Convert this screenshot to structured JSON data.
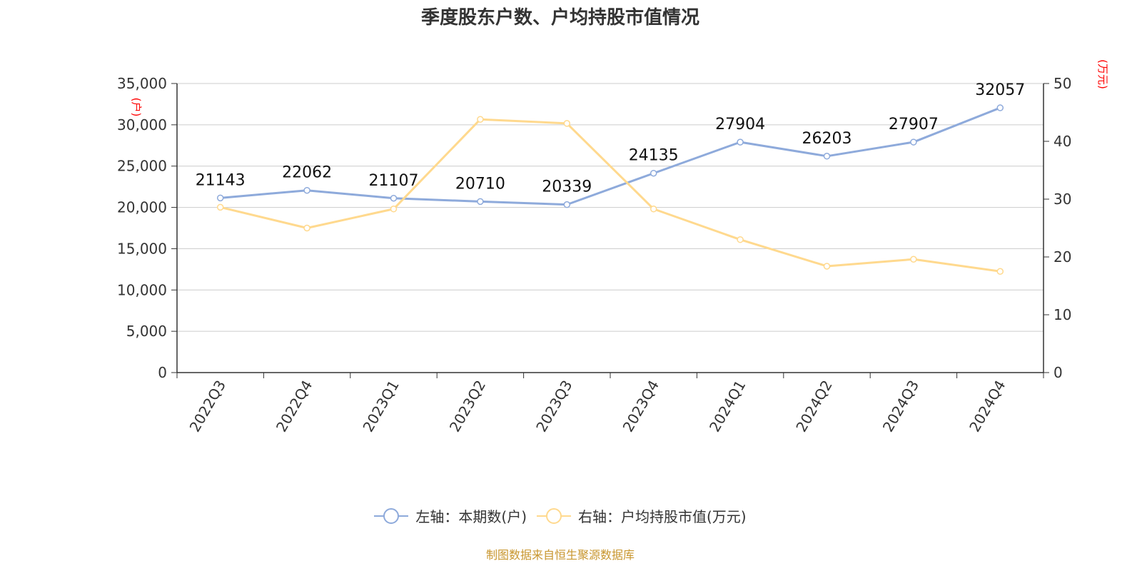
{
  "chart_data": {
    "type": "line",
    "title": "季度股东户数、户均持股市值情况",
    "categories": [
      "2022Q3",
      "2022Q4",
      "2023Q1",
      "2023Q2",
      "2023Q3",
      "2023Q4",
      "2024Q1",
      "2024Q2",
      "2024Q3",
      "2024Q4"
    ],
    "series": [
      {
        "name": "左轴：本期数(户)",
        "axis": "left",
        "color": "#8eaadb",
        "values": [
          21143,
          22062,
          21107,
          20710,
          20339,
          24135,
          27904,
          26203,
          27907,
          32057
        ],
        "labels": [
          "21143",
          "22062",
          "21107",
          "20710",
          "20339",
          "24135",
          "27904",
          "26203",
          "27907",
          "32057"
        ]
      },
      {
        "name": "右轴：户均持股市值(万元)",
        "axis": "right",
        "color": "#ffd98e",
        "values": [
          28.6,
          25.0,
          28.3,
          43.8,
          43.1,
          28.3,
          23.0,
          18.4,
          19.6,
          17.5
        ]
      }
    ],
    "left_axis": {
      "unit": "(户)",
      "ylim": [
        0,
        35000
      ],
      "ticks": [
        0,
        5000,
        10000,
        15000,
        20000,
        25000,
        30000,
        35000
      ],
      "tick_labels": [
        "0",
        "5,000",
        "10,000",
        "15,000",
        "20,000",
        "25,000",
        "30,000",
        "35,000"
      ]
    },
    "right_axis": {
      "unit": "(万元)",
      "ylim": [
        0,
        50
      ],
      "ticks": [
        0,
        10,
        20,
        30,
        40,
        50
      ],
      "tick_labels": [
        "0",
        "10",
        "20",
        "30",
        "40",
        "50"
      ]
    },
    "grid": true,
    "legend_position": "bottom-center",
    "source": "制图数据来自恒生聚源数据库"
  }
}
